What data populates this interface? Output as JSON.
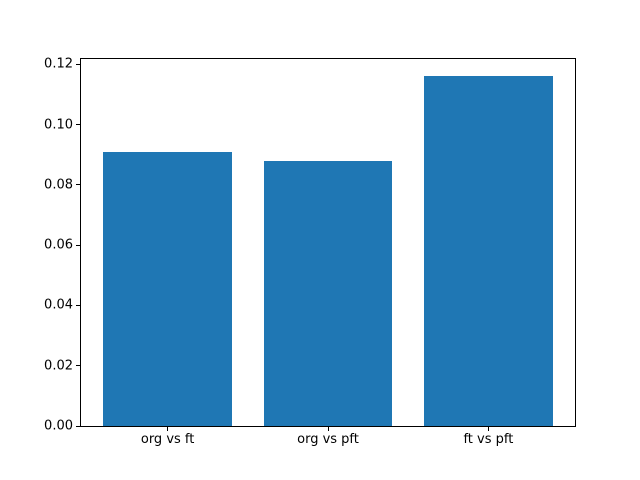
{
  "chart_data": {
    "type": "bar",
    "categories": [
      "org vs ft",
      "org vs pft",
      "ft vs pft"
    ],
    "values": [
      0.091,
      0.088,
      0.116
    ],
    "title": "",
    "xlabel": "",
    "ylabel": "",
    "ylim": [
      0,
      0.1218
    ],
    "ytick_values": [
      0,
      0.02,
      0.04,
      0.06,
      0.08,
      0.1,
      0.12
    ],
    "ytick_labels": [
      "0.00",
      "0.02",
      "0.04",
      "0.06",
      "0.08",
      "0.10",
      "0.12"
    ],
    "bar_color": "#1f77b4",
    "bar_width_fraction": 0.8,
    "axis_color": "#000000",
    "text_color": "#000000",
    "background_color": "#ffffff",
    "grid": false,
    "legend": false
  }
}
